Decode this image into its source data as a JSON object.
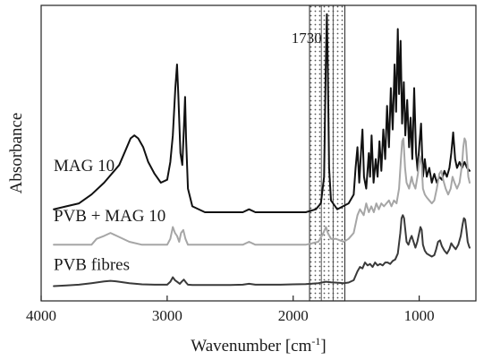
{
  "chart_data": {
    "type": "line",
    "xlabel": "Wavenumber [cm",
    "xlabel_sup": "-1",
    "xlabel_end": "]",
    "ylabel": "Absorbance",
    "xlim": [
      4000,
      550
    ],
    "x_reversed": true,
    "y_axis_ticks": false,
    "grid": false,
    "x_ticks": [
      {
        "value": 4000,
        "label": "4000"
      },
      {
        "value": 3000,
        "label": "3000"
      },
      {
        "value": 2000,
        "label": "2000"
      },
      {
        "value": 1000,
        "label": "1000"
      }
    ],
    "highlight_band": {
      "from": 1870,
      "to": 1590
    },
    "annotations": [
      {
        "text": "1730",
        "x": 1730
      }
    ],
    "series": [
      {
        "name": "MAG 10",
        "color": "#111111",
        "points": [
          [
            3900,
            0.31
          ],
          [
            3800,
            0.32
          ],
          [
            3700,
            0.33
          ],
          [
            3600,
            0.36
          ],
          [
            3500,
            0.4
          ],
          [
            3420,
            0.44
          ],
          [
            3380,
            0.46
          ],
          [
            3330,
            0.51
          ],
          [
            3290,
            0.55
          ],
          [
            3260,
            0.56
          ],
          [
            3230,
            0.55
          ],
          [
            3190,
            0.52
          ],
          [
            3150,
            0.47
          ],
          [
            3100,
            0.43
          ],
          [
            3050,
            0.4
          ],
          [
            3000,
            0.41
          ],
          [
            2975,
            0.47
          ],
          [
            2955,
            0.56
          ],
          [
            2935,
            0.72
          ],
          [
            2922,
            0.8
          ],
          [
            2912,
            0.7
          ],
          [
            2895,
            0.5
          ],
          [
            2880,
            0.46
          ],
          [
            2868,
            0.58
          ],
          [
            2858,
            0.69
          ],
          [
            2850,
            0.55
          ],
          [
            2835,
            0.38
          ],
          [
            2800,
            0.32
          ],
          [
            2700,
            0.3
          ],
          [
            2600,
            0.3
          ],
          [
            2500,
            0.3
          ],
          [
            2400,
            0.3
          ],
          [
            2350,
            0.31
          ],
          [
            2300,
            0.3
          ],
          [
            2200,
            0.3
          ],
          [
            2100,
            0.3
          ],
          [
            2000,
            0.3
          ],
          [
            1900,
            0.3
          ],
          [
            1820,
            0.31
          ],
          [
            1780,
            0.33
          ],
          [
            1755,
            0.42
          ],
          [
            1742,
            0.78
          ],
          [
            1733,
            0.97
          ],
          [
            1726,
            0.82
          ],
          [
            1715,
            0.45
          ],
          [
            1700,
            0.34
          ],
          [
            1650,
            0.31
          ],
          [
            1560,
            0.33
          ],
          [
            1520,
            0.36
          ],
          [
            1505,
            0.45
          ],
          [
            1490,
            0.52
          ],
          [
            1476,
            0.4
          ],
          [
            1462,
            0.5
          ],
          [
            1450,
            0.58
          ],
          [
            1438,
            0.42
          ],
          [
            1420,
            0.38
          ],
          [
            1400,
            0.5
          ],
          [
            1390,
            0.42
          ],
          [
            1378,
            0.56
          ],
          [
            1362,
            0.4
          ],
          [
            1345,
            0.48
          ],
          [
            1330,
            0.42
          ],
          [
            1315,
            0.54
          ],
          [
            1300,
            0.44
          ],
          [
            1285,
            0.58
          ],
          [
            1270,
            0.48
          ],
          [
            1255,
            0.66
          ],
          [
            1240,
            0.52
          ],
          [
            1225,
            0.72
          ],
          [
            1210,
            0.58
          ],
          [
            1195,
            0.8
          ],
          [
            1183,
            0.64
          ],
          [
            1170,
            0.92
          ],
          [
            1160,
            0.7
          ],
          [
            1148,
            0.88
          ],
          [
            1136,
            0.6
          ],
          [
            1122,
            0.74
          ],
          [
            1110,
            0.56
          ],
          [
            1095,
            0.68
          ],
          [
            1080,
            0.52
          ],
          [
            1068,
            0.62
          ],
          [
            1055,
            0.48
          ],
          [
            1040,
            0.72
          ],
          [
            1025,
            0.5
          ],
          [
            1012,
            0.44
          ],
          [
            1000,
            0.52
          ],
          [
            985,
            0.6
          ],
          [
            970,
            0.42
          ],
          [
            955,
            0.48
          ],
          [
            940,
            0.42
          ],
          [
            920,
            0.45
          ],
          [
            900,
            0.4
          ],
          [
            880,
            0.43
          ],
          [
            860,
            0.4
          ],
          [
            840,
            0.42
          ],
          [
            820,
            0.41
          ],
          [
            800,
            0.44
          ],
          [
            780,
            0.42
          ],
          [
            760,
            0.45
          ],
          [
            745,
            0.5
          ],
          [
            730,
            0.57
          ],
          [
            715,
            0.48
          ],
          [
            700,
            0.45
          ],
          [
            680,
            0.47
          ],
          [
            660,
            0.45
          ],
          [
            640,
            0.47
          ],
          [
            620,
            0.45
          ],
          [
            600,
            0.44
          ]
        ]
      },
      {
        "name": "PVB + MAG 10",
        "color": "#a6a6a6",
        "points": [
          [
            3900,
            0.19
          ],
          [
            3800,
            0.19
          ],
          [
            3700,
            0.19
          ],
          [
            3600,
            0.19
          ],
          [
            3560,
            0.21
          ],
          [
            3500,
            0.22
          ],
          [
            3450,
            0.23
          ],
          [
            3400,
            0.22
          ],
          [
            3300,
            0.2
          ],
          [
            3200,
            0.19
          ],
          [
            3100,
            0.19
          ],
          [
            3000,
            0.19
          ],
          [
            2975,
            0.21
          ],
          [
            2955,
            0.25
          ],
          [
            2938,
            0.23
          ],
          [
            2922,
            0.22
          ],
          [
            2905,
            0.2
          ],
          [
            2890,
            0.23
          ],
          [
            2872,
            0.24
          ],
          [
            2855,
            0.21
          ],
          [
            2835,
            0.19
          ],
          [
            2800,
            0.19
          ],
          [
            2700,
            0.19
          ],
          [
            2600,
            0.19
          ],
          [
            2500,
            0.19
          ],
          [
            2400,
            0.19
          ],
          [
            2350,
            0.2
          ],
          [
            2300,
            0.19
          ],
          [
            2100,
            0.19
          ],
          [
            1900,
            0.19
          ],
          [
            1800,
            0.2
          ],
          [
            1760,
            0.23
          ],
          [
            1740,
            0.25
          ],
          [
            1725,
            0.23
          ],
          [
            1700,
            0.21
          ],
          [
            1660,
            0.21
          ],
          [
            1600,
            0.2
          ],
          [
            1560,
            0.21
          ],
          [
            1520,
            0.23
          ],
          [
            1490,
            0.29
          ],
          [
            1470,
            0.31
          ],
          [
            1440,
            0.29
          ],
          [
            1420,
            0.33
          ],
          [
            1400,
            0.3
          ],
          [
            1380,
            0.32
          ],
          [
            1360,
            0.3
          ],
          [
            1340,
            0.33
          ],
          [
            1320,
            0.31
          ],
          [
            1300,
            0.33
          ],
          [
            1280,
            0.32
          ],
          [
            1260,
            0.33
          ],
          [
            1240,
            0.34
          ],
          [
            1220,
            0.32
          ],
          [
            1200,
            0.34
          ],
          [
            1180,
            0.33
          ],
          [
            1160,
            0.38
          ],
          [
            1145,
            0.48
          ],
          [
            1135,
            0.54
          ],
          [
            1125,
            0.55
          ],
          [
            1112,
            0.45
          ],
          [
            1100,
            0.4
          ],
          [
            1080,
            0.38
          ],
          [
            1060,
            0.42
          ],
          [
            1050,
            0.4
          ],
          [
            1030,
            0.38
          ],
          [
            1010,
            0.43
          ],
          [
            995,
            0.49
          ],
          [
            980,
            0.46
          ],
          [
            970,
            0.38
          ],
          [
            955,
            0.36
          ],
          [
            940,
            0.35
          ],
          [
            920,
            0.34
          ],
          [
            900,
            0.33
          ],
          [
            880,
            0.34
          ],
          [
            860,
            0.38
          ],
          [
            840,
            0.43
          ],
          [
            825,
            0.44
          ],
          [
            810,
            0.41
          ],
          [
            790,
            0.38
          ],
          [
            770,
            0.36
          ],
          [
            750,
            0.38
          ],
          [
            735,
            0.42
          ],
          [
            720,
            0.4
          ],
          [
            700,
            0.38
          ],
          [
            680,
            0.4
          ],
          [
            660,
            0.46
          ],
          [
            650,
            0.52
          ],
          [
            640,
            0.55
          ],
          [
            630,
            0.54
          ],
          [
            620,
            0.48
          ],
          [
            610,
            0.42
          ],
          [
            600,
            0.4
          ]
        ]
      },
      {
        "name": "PVB fibres",
        "color": "#3a3a3a",
        "points": [
          [
            3900,
            0.05
          ],
          [
            3800,
            0.052
          ],
          [
            3700,
            0.055
          ],
          [
            3600,
            0.06
          ],
          [
            3500,
            0.066
          ],
          [
            3450,
            0.068
          ],
          [
            3400,
            0.066
          ],
          [
            3300,
            0.06
          ],
          [
            3200,
            0.056
          ],
          [
            3100,
            0.055
          ],
          [
            3000,
            0.055
          ],
          [
            2975,
            0.065
          ],
          [
            2955,
            0.08
          ],
          [
            2938,
            0.07
          ],
          [
            2922,
            0.065
          ],
          [
            2900,
            0.058
          ],
          [
            2885,
            0.065
          ],
          [
            2868,
            0.072
          ],
          [
            2850,
            0.062
          ],
          [
            2835,
            0.055
          ],
          [
            2800,
            0.054
          ],
          [
            2700,
            0.054
          ],
          [
            2600,
            0.054
          ],
          [
            2500,
            0.054
          ],
          [
            2400,
            0.055
          ],
          [
            2350,
            0.058
          ],
          [
            2300,
            0.055
          ],
          [
            2200,
            0.055
          ],
          [
            2100,
            0.055
          ],
          [
            2000,
            0.056
          ],
          [
            1900,
            0.057
          ],
          [
            1800,
            0.06
          ],
          [
            1740,
            0.065
          ],
          [
            1700,
            0.063
          ],
          [
            1600,
            0.06
          ],
          [
            1560,
            0.062
          ],
          [
            1520,
            0.07
          ],
          [
            1490,
            0.1
          ],
          [
            1470,
            0.115
          ],
          [
            1450,
            0.11
          ],
          [
            1430,
            0.13
          ],
          [
            1410,
            0.12
          ],
          [
            1390,
            0.125
          ],
          [
            1370,
            0.115
          ],
          [
            1350,
            0.13
          ],
          [
            1330,
            0.12
          ],
          [
            1310,
            0.125
          ],
          [
            1290,
            0.12
          ],
          [
            1270,
            0.13
          ],
          [
            1250,
            0.13
          ],
          [
            1230,
            0.125
          ],
          [
            1210,
            0.135
          ],
          [
            1190,
            0.14
          ],
          [
            1170,
            0.16
          ],
          [
            1150,
            0.23
          ],
          [
            1140,
            0.28
          ],
          [
            1130,
            0.29
          ],
          [
            1120,
            0.28
          ],
          [
            1110,
            0.24
          ],
          [
            1100,
            0.2
          ],
          [
            1085,
            0.19
          ],
          [
            1070,
            0.21
          ],
          [
            1060,
            0.22
          ],
          [
            1045,
            0.2
          ],
          [
            1030,
            0.18
          ],
          [
            1015,
            0.2
          ],
          [
            1000,
            0.23
          ],
          [
            990,
            0.25
          ],
          [
            980,
            0.24
          ],
          [
            970,
            0.19
          ],
          [
            955,
            0.17
          ],
          [
            940,
            0.16
          ],
          [
            920,
            0.155
          ],
          [
            900,
            0.15
          ],
          [
            880,
            0.155
          ],
          [
            865,
            0.175
          ],
          [
            850,
            0.2
          ],
          [
            835,
            0.205
          ],
          [
            820,
            0.185
          ],
          [
            800,
            0.17
          ],
          [
            780,
            0.16
          ],
          [
            760,
            0.175
          ],
          [
            745,
            0.195
          ],
          [
            730,
            0.185
          ],
          [
            710,
            0.175
          ],
          [
            690,
            0.19
          ],
          [
            670,
            0.22
          ],
          [
            655,
            0.26
          ],
          [
            645,
            0.28
          ],
          [
            635,
            0.275
          ],
          [
            625,
            0.24
          ],
          [
            615,
            0.2
          ],
          [
            605,
            0.185
          ],
          [
            600,
            0.18
          ]
        ]
      }
    ],
    "series_label_y": [
      0.44,
      0.27,
      0.105
    ]
  }
}
